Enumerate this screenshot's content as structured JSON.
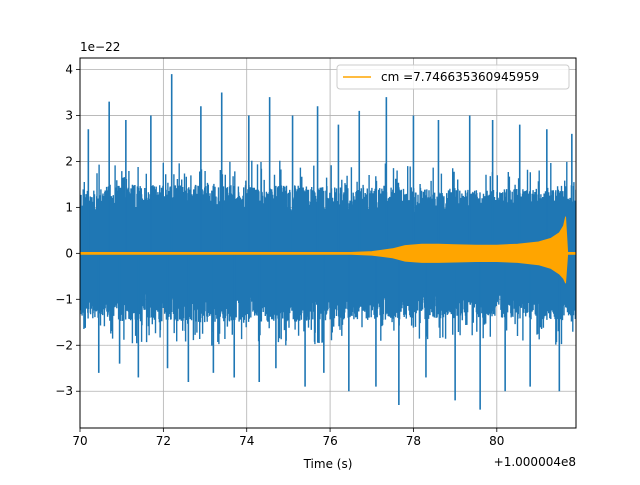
{
  "chart_data": {
    "type": "line",
    "title": "",
    "xlabel": "Time (s)",
    "ylabel": "",
    "x_offset_label": "+1.000004e8",
    "y_scale_label": "1e−22",
    "xlim": [
      70,
      81.9
    ],
    "ylim": [
      -3.8,
      4.25
    ],
    "x_ticks": [
      70,
      72,
      74,
      76,
      78,
      80
    ],
    "x_tick_labels": [
      "70",
      "72",
      "74",
      "76",
      "78",
      "80"
    ],
    "y_ticks": [
      -3,
      -2,
      -1,
      0,
      1,
      2,
      3,
      4
    ],
    "y_tick_labels": [
      "−3",
      "−2",
      "−1",
      "0",
      "1",
      "2",
      "3",
      "4"
    ],
    "grid": true,
    "legend_placement": "upper-right",
    "series": [
      {
        "name": "",
        "color": "#1f77b4",
        "description": "strain noise",
        "envelope_x": [
          70,
          71,
          72,
          73,
          74,
          75,
          76,
          77,
          78,
          79,
          80,
          81,
          81.9
        ],
        "envelope_upper": [
          1.4,
          1.5,
          1.5,
          1.5,
          1.5,
          1.5,
          1.45,
          1.45,
          1.45,
          1.4,
          1.4,
          1.45,
          1.5
        ],
        "envelope_lower": [
          -1.4,
          -1.5,
          -1.5,
          -1.5,
          -1.5,
          -1.5,
          -1.45,
          -1.45,
          -1.45,
          -1.4,
          -1.4,
          -1.45,
          -1.5
        ],
        "spike_x": [
          70.2,
          70.45,
          70.7,
          70.95,
          71.1,
          71.4,
          71.7,
          72.1,
          72.2,
          72.6,
          72.9,
          73.2,
          73.4,
          73.7,
          74.05,
          74.3,
          74.55,
          74.7,
          75.1,
          75.4,
          75.7,
          75.85,
          76.2,
          76.45,
          76.7,
          77.1,
          77.35,
          77.65,
          78.0,
          78.3,
          78.6,
          79.0,
          79.35,
          79.6,
          79.9,
          80.2,
          80.55,
          80.8,
          81.2,
          81.5,
          81.8
        ],
        "spike_y": [
          2.7,
          -2.6,
          3.3,
          -2.4,
          2.9,
          -2.7,
          3.0,
          -2.5,
          3.9,
          -2.8,
          3.2,
          -2.6,
          3.5,
          -2.7,
          3.0,
          -2.8,
          3.4,
          -2.5,
          3.0,
          -2.9,
          3.2,
          -2.6,
          2.8,
          -3.0,
          3.1,
          -2.9,
          3.4,
          -3.3,
          3.0,
          -2.7,
          2.9,
          -3.2,
          3.0,
          -3.4,
          2.9,
          -3.0,
          2.8,
          -2.9,
          2.7,
          -3.0,
          2.6
        ]
      },
      {
        "name": "cm =7.746635360945959",
        "color": "#ffa500",
        "description": "template waveform (chirp)",
        "envelope_x": [
          70,
          76.5,
          77.0,
          77.5,
          77.8,
          78.2,
          78.6,
          79.0,
          79.5,
          80.0,
          80.5,
          81.0,
          81.3,
          81.5,
          81.6,
          81.65,
          81.7,
          81.9
        ],
        "envelope_upper": [
          0.02,
          0.02,
          0.04,
          0.1,
          0.17,
          0.2,
          0.2,
          0.19,
          0.18,
          0.18,
          0.2,
          0.25,
          0.33,
          0.45,
          0.6,
          0.8,
          0.02,
          0.02
        ],
        "envelope_lower": [
          -0.02,
          -0.02,
          -0.04,
          -0.1,
          -0.17,
          -0.2,
          -0.2,
          -0.19,
          -0.18,
          -0.18,
          -0.2,
          -0.25,
          -0.33,
          -0.45,
          -0.55,
          -0.65,
          -0.02,
          -0.02
        ]
      }
    ]
  }
}
